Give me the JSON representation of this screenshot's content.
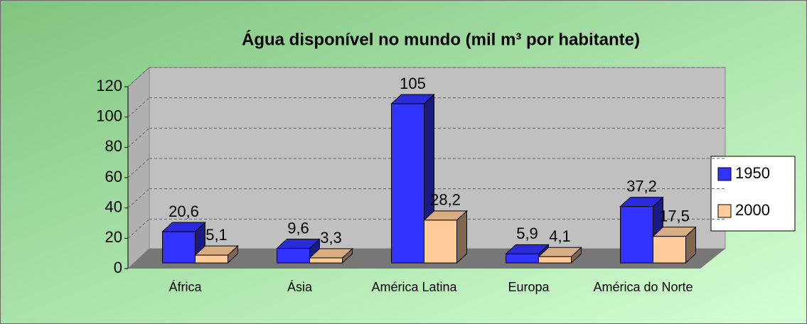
{
  "chart_data": {
    "type": "bar3d",
    "title": "Água disponível no mundo (mil m³ por habitante)",
    "categories": [
      "África",
      "Ásia",
      "América Latina",
      "Europa",
      "América do Norte"
    ],
    "series": [
      {
        "name": "1950",
        "color": "#3333ff",
        "values": [
          20.6,
          9.6,
          105,
          5.9,
          37.2
        ],
        "value_labels": [
          "20,6",
          "9,6",
          "105",
          "5,9",
          "37,2"
        ]
      },
      {
        "name": "2000",
        "color": "#ffcc99",
        "values": [
          5.1,
          3.3,
          28.2,
          4.1,
          17.5
        ],
        "value_labels": [
          "5,1",
          "3,3",
          "28,2",
          "4,1",
          "17,5"
        ]
      }
    ],
    "ylim": [
      0,
      120
    ],
    "yticks": [
      0,
      20,
      40,
      60,
      80,
      100,
      120
    ],
    "grid": true,
    "legend": "right"
  }
}
